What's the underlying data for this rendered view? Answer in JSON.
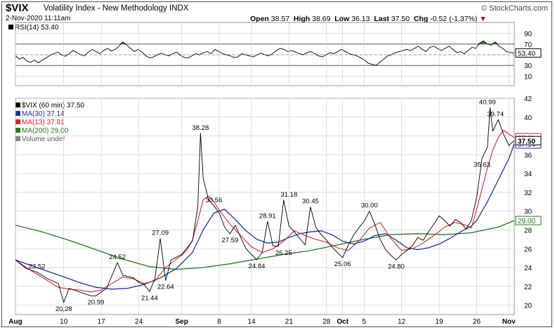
{
  "header": {
    "symbol": "$VIX",
    "name": "Volatility Index - New Methodology",
    "exchange": "INDX",
    "timestamp": "2-Nov-2020 11:11am",
    "copyright": "© StockCharts.com",
    "open_label": "Open",
    "open": "38.57",
    "high_label": "High",
    "high": "38.69",
    "low_label": "Low",
    "low": "36.13",
    "last_label": "Last",
    "last": "37.50",
    "chg_label": "Chg",
    "chg": "-0.52 (-1.37%)",
    "chg_arrow": "▼"
  },
  "colors": {
    "price": "#000000",
    "ma30": "#1f2fa8",
    "ma13": "#e0202a",
    "ma200": "#1f7a1f",
    "rsi_fill": "#2e7d2e",
    "grid": "#c8c8c8",
    "neg": "#c00000"
  },
  "chart_data": [
    {
      "type": "line",
      "title": "RSI(14) 53.40",
      "legend_label": "RSI(14)",
      "legend_value": "53.40",
      "last_label": "53.40",
      "y_ticks": [
        90,
        70,
        50,
        30,
        10
      ],
      "ylim": [
        0,
        100
      ],
      "overbought": 70,
      "oversold": 30,
      "values": [
        48,
        42,
        45,
        38,
        36,
        40,
        35,
        40,
        44,
        49,
        52,
        55,
        50,
        47,
        52,
        58,
        54,
        50,
        48,
        55,
        60,
        56,
        52,
        58,
        62,
        57,
        60,
        66,
        74,
        68,
        62,
        56,
        60,
        55,
        48,
        44,
        46,
        50,
        53,
        50,
        48,
        52,
        55,
        49,
        45,
        44,
        48,
        52,
        50,
        54,
        56,
        52,
        60,
        56,
        52,
        50,
        48,
        45,
        46,
        52,
        50,
        48,
        46,
        50,
        53,
        50,
        48,
        52,
        58,
        62,
        60,
        56,
        58,
        55,
        52,
        50,
        54,
        56,
        52,
        48,
        46,
        50,
        54,
        52,
        56,
        60,
        56,
        52,
        50,
        48,
        44,
        40,
        34,
        32,
        30,
        36,
        42,
        48,
        50,
        54,
        56,
        58,
        60,
        58,
        62,
        66,
        60,
        56,
        64,
        66,
        62,
        58,
        62,
        66,
        60,
        54,
        56,
        52,
        58,
        64,
        62,
        72,
        76,
        70,
        68,
        74,
        66,
        62,
        56,
        54,
        53.4
      ]
    },
    {
      "type": "line",
      "title": "$VIX (60 min) 37.50",
      "price_label": "$VIX (60 min)",
      "price_value": "37.50",
      "ylim": [
        19,
        42
      ],
      "y_ticks": [
        42,
        40,
        38,
        36,
        34,
        32,
        30,
        28,
        26,
        24,
        22,
        20
      ],
      "x_tick_labels": [
        "Aug",
        "10",
        "17",
        "24",
        "Sep",
        "8",
        "14",
        "21",
        "28",
        "Oct",
        "5",
        "12",
        "19",
        "26",
        "Nov"
      ],
      "x_tick_days": [
        0,
        9,
        16,
        23,
        31,
        38,
        44,
        51,
        58,
        61,
        65,
        72,
        79,
        86,
        92
      ],
      "series": [
        {
          "name": "$VIX (60 min)",
          "x": [
            0,
            2,
            4,
            6,
            8,
            9,
            10,
            12,
            14,
            15,
            17,
            19,
            20,
            22,
            23,
            24,
            25,
            26,
            27,
            28,
            29,
            30,
            31,
            32,
            33,
            34,
            34.5,
            35,
            36,
            37,
            38,
            39,
            40,
            41,
            42,
            43,
            44,
            45,
            46,
            47,
            48,
            49,
            50,
            51,
            52,
            53,
            54,
            55,
            56,
            57,
            58,
            59,
            60,
            61,
            62,
            63,
            64,
            65,
            66,
            67,
            68,
            69,
            70,
            71,
            72,
            73,
            74,
            75,
            76,
            77,
            78,
            79,
            80,
            81,
            82,
            83,
            84,
            85,
            86,
            87,
            88,
            88.5,
            89,
            90,
            91,
            92,
            93
          ],
          "values": [
            24.8,
            23.9,
            23.52,
            22.8,
            22.3,
            20.28,
            21.8,
            21.4,
            21.0,
            20.99,
            21.8,
            24.52,
            23.2,
            22.9,
            22.4,
            22.2,
            21.44,
            22.8,
            27.09,
            22.64,
            24.8,
            25.1,
            25.4,
            26.1,
            26.8,
            30.5,
            38.28,
            33.5,
            31.2,
            30.56,
            29.8,
            28.3,
            27.59,
            28.5,
            27.2,
            26.0,
            25.4,
            24.84,
            25.6,
            28.91,
            26.3,
            26.25,
            31.18,
            28.4,
            27.8,
            27.1,
            26.4,
            30.45,
            28.3,
            27.5,
            26.9,
            26.2,
            25.6,
            25.06,
            26.3,
            27.4,
            28.2,
            28.9,
            30.0,
            28.6,
            27.0,
            25.9,
            25.3,
            24.8,
            25.4,
            25.8,
            26.3,
            27.2,
            26.9,
            27.8,
            28.6,
            29.5,
            29.0,
            28.4,
            29.1,
            28.8,
            28.1,
            29.0,
            31.5,
            35.63,
            36.8,
            40.99,
            38.5,
            39.74,
            38.2,
            37.0,
            37.5
          ]
        },
        {
          "name": "MA(30)",
          "legend_value": "37.14",
          "x": [
            0,
            3,
            6,
            9,
            12,
            15,
            18,
            21,
            24,
            27,
            30,
            33,
            35,
            37,
            39,
            41,
            43,
            45,
            47,
            49,
            51,
            53,
            55,
            57,
            59,
            61,
            63,
            65,
            67,
            69,
            71,
            73,
            75,
            77,
            79,
            81,
            83,
            85,
            86,
            88,
            90,
            92,
            93
          ],
          "values": [
            24.8,
            24.2,
            23.6,
            23.0,
            22.4,
            21.9,
            21.7,
            21.8,
            22.2,
            22.9,
            23.9,
            25.6,
            28.0,
            29.8,
            30.2,
            29.1,
            27.9,
            27.0,
            26.6,
            26.7,
            27.2,
            27.6,
            27.8,
            27.9,
            27.5,
            26.8,
            26.5,
            26.8,
            27.4,
            27.6,
            26.9,
            26.1,
            25.9,
            26.1,
            26.5,
            27.1,
            27.8,
            28.4,
            29.0,
            31.0,
            33.3,
            35.6,
            37.14
          ]
        },
        {
          "name": "MA(13)",
          "legend_value": "37.81",
          "x": [
            0,
            2,
            4,
            6,
            8,
            10,
            12,
            14,
            16,
            18,
            20,
            22,
            24,
            26,
            28,
            30,
            31,
            32,
            33,
            34,
            35,
            36,
            37,
            38,
            40,
            42,
            44,
            46,
            48,
            50,
            52,
            54,
            56,
            58,
            60,
            62,
            64,
            66,
            68,
            70,
            72,
            74,
            76,
            78,
            80,
            82,
            84,
            85,
            86,
            87,
            88,
            89,
            90,
            91,
            92,
            93
          ],
          "values": [
            24.8,
            24.0,
            23.3,
            22.6,
            21.9,
            21.7,
            21.6,
            21.4,
            21.6,
            22.3,
            23.0,
            22.8,
            22.3,
            22.6,
            24.0,
            24.9,
            25.3,
            25.9,
            26.9,
            29.0,
            31.2,
            31.6,
            31.0,
            30.1,
            28.6,
            27.4,
            26.2,
            25.6,
            26.0,
            26.8,
            27.9,
            27.4,
            27.0,
            26.7,
            26.1,
            25.8,
            26.8,
            28.2,
            28.8,
            27.1,
            25.8,
            26.0,
            26.6,
            27.4,
            28.3,
            28.8,
            28.5,
            28.2,
            30.2,
            32.4,
            34.6,
            36.5,
            37.8,
            38.6,
            38.2,
            37.81
          ]
        },
        {
          "name": "MA(200)",
          "legend_value": "29.00",
          "x": [
            0,
            5,
            10,
            15,
            20,
            25,
            30,
            35,
            40,
            45,
            50,
            55,
            60,
            65,
            70,
            75,
            80,
            85,
            90,
            93
          ],
          "values": [
            28.5,
            27.8,
            26.9,
            25.9,
            24.9,
            24.1,
            23.8,
            24.0,
            24.4,
            24.9,
            25.4,
            25.8,
            26.4,
            27.0,
            27.5,
            27.6,
            27.5,
            27.7,
            28.3,
            29.0
          ]
        }
      ],
      "data_labels": [
        {
          "x": 9,
          "y": 20.28,
          "text": "20.28",
          "pos": "below"
        },
        {
          "x": 4,
          "y": 23.52,
          "text": "23.52",
          "pos": "above"
        },
        {
          "x": 15,
          "y": 20.99,
          "text": "20.99",
          "pos": "below"
        },
        {
          "x": 19,
          "y": 24.52,
          "text": "24.52",
          "pos": "above"
        },
        {
          "x": 25,
          "y": 21.44,
          "text": "21.44",
          "pos": "below"
        },
        {
          "x": 27,
          "y": 27.09,
          "text": "27.09",
          "pos": "above"
        },
        {
          "x": 28,
          "y": 22.64,
          "text": "22.64",
          "pos": "below"
        },
        {
          "x": 34.5,
          "y": 38.28,
          "text": "38.28",
          "pos": "above"
        },
        {
          "x": 37,
          "y": 30.56,
          "text": "30.56",
          "pos": "above"
        },
        {
          "x": 40,
          "y": 27.59,
          "text": "27.59",
          "pos": "below"
        },
        {
          "x": 47,
          "y": 28.91,
          "text": "28.91",
          "pos": "above"
        },
        {
          "x": 45,
          "y": 24.84,
          "text": "24.84",
          "pos": "below"
        },
        {
          "x": 50,
          "y": 26.25,
          "text": "26.25",
          "pos": "below"
        },
        {
          "x": 51,
          "y": 31.18,
          "text": "31.18",
          "pos": "above"
        },
        {
          "x": 55,
          "y": 30.45,
          "text": "30.45",
          "pos": "above"
        },
        {
          "x": 61,
          "y": 25.06,
          "text": "25.06",
          "pos": "below"
        },
        {
          "x": 66,
          "y": 30.0,
          "text": "30.00",
          "pos": "above"
        },
        {
          "x": 71,
          "y": 24.8,
          "text": "24.80",
          "pos": "below"
        },
        {
          "x": 88,
          "y": 40.99,
          "text": "40.99",
          "pos": "above"
        },
        {
          "x": 89.5,
          "y": 39.74,
          "text": "39.74",
          "pos": "above"
        },
        {
          "x": 87,
          "y": 35.63,
          "text": "35.63",
          "pos": "below"
        }
      ],
      "right_labels": [
        {
          "y": 37.81,
          "text": "37.81",
          "color": "#e0202a"
        },
        {
          "y": 37.14,
          "text": "37.14",
          "color": "#1f2fa8"
        },
        {
          "y": 37.5,
          "text": "37.50",
          "color": "#000000",
          "bold": true
        },
        {
          "y": 29.0,
          "text": "29.00",
          "color": "#1f7a1f"
        }
      ],
      "legend": {
        "placement": "top-left",
        "volume_label": "Volume undef"
      }
    }
  ]
}
